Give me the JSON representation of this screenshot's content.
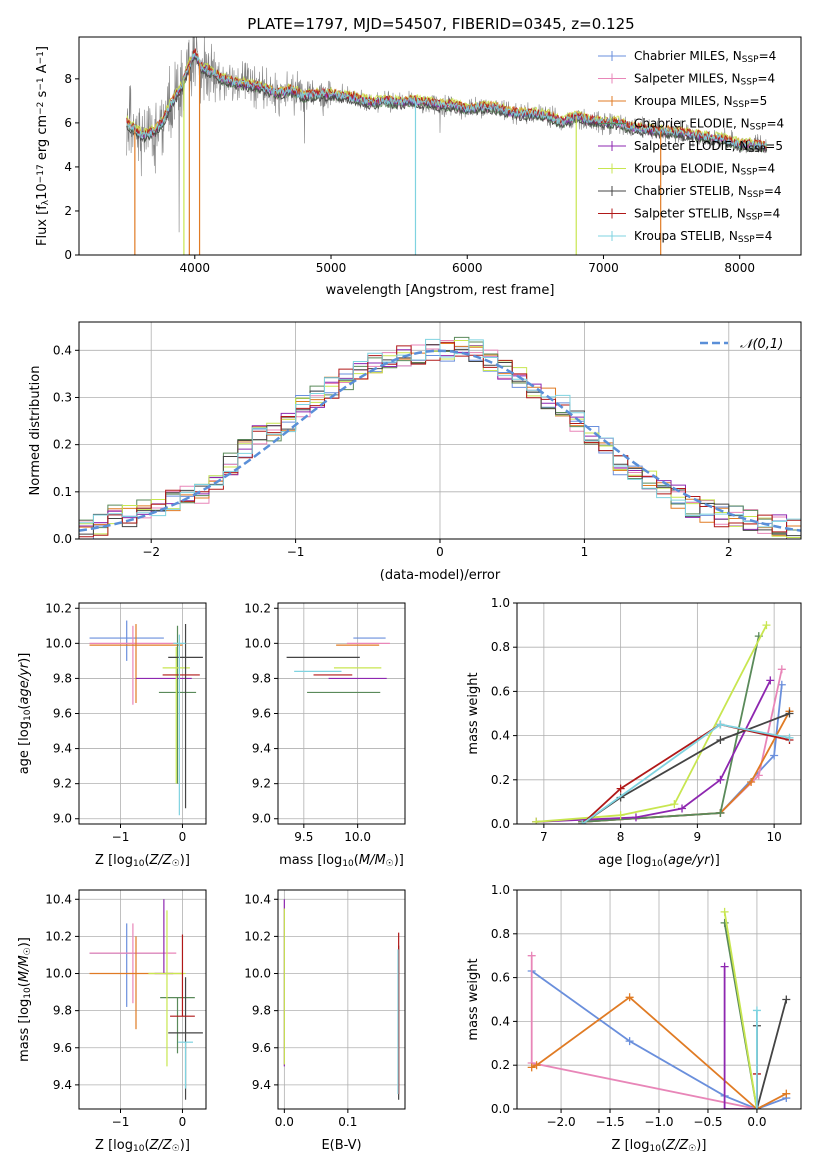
{
  "title": "PLATE=1797, MJD=54507, FIBERID=0345, z=0.125",
  "colors": {
    "Chabrier MILES": "#6a8fdc",
    "Salpeter MILES": "#e886b8",
    "Kroupa MILES": "#e07b24",
    "Chabrier ELODIE": "#5a8a5a",
    "Salpeter ELODIE": "#8e27b0",
    "Kroupa ELODIE": "#c8e650",
    "Chabrier STELIB": "#444444",
    "Salpeter STELIB": "#b01818",
    "Kroupa STELIB": "#7fd3e0",
    "data": "#808080",
    "normal": "#5a8fd8"
  },
  "chart_data": [
    {
      "id": "spectrum",
      "type": "line",
      "xlabel": "wavelength [Angstrom, rest frame]",
      "ylabel": "Flux [f_λ 10^-17 erg cm^-2 s^-1 A^-1]",
      "xlim": [
        3150,
        8450
      ],
      "ylim": [
        0,
        9.9
      ],
      "xticks": [
        4000,
        5000,
        6000,
        7000,
        8000
      ],
      "yticks": [
        0,
        2,
        4,
        6,
        8
      ],
      "grid": false,
      "legend_position": "top-right",
      "continuum": {
        "x": [
          3500,
          3560,
          3620,
          3700,
          3760,
          3820,
          3900,
          3960,
          4000,
          4050,
          4100,
          4200,
          4300,
          4400,
          4500,
          4600,
          4700,
          4800,
          4900,
          5000,
          5100,
          5200,
          5300,
          5400,
          5500,
          5600,
          5700,
          5800,
          5900,
          6000,
          6100,
          6200,
          6300,
          6400,
          6500,
          6600,
          6700,
          6800,
          6900,
          7000,
          7100,
          7200,
          7300,
          7400,
          7500,
          7600,
          7700,
          7800,
          7900,
          8000,
          8100,
          8200
        ],
        "y": [
          6.0,
          5.7,
          5.4,
          5.6,
          6.0,
          6.8,
          7.6,
          8.6,
          9.2,
          8.5,
          8.4,
          8.0,
          7.8,
          7.7,
          7.6,
          7.3,
          7.5,
          7.2,
          7.3,
          7.3,
          7.2,
          7.1,
          6.9,
          7.0,
          6.9,
          7.0,
          6.9,
          6.8,
          6.8,
          6.6,
          6.7,
          6.7,
          6.5,
          6.4,
          6.4,
          6.3,
          6.0,
          6.3,
          6.1,
          6.0,
          6.0,
          5.8,
          5.7,
          5.6,
          5.6,
          5.5,
          5.4,
          5.3,
          5.2,
          5.0,
          5.0,
          4.9
        ]
      },
      "series": [
        {
          "name": "Chabrier MILES, N_SSP=4",
          "offset": 0.05
        },
        {
          "name": "Salpeter MILES, N_SSP=4",
          "offset": -0.05
        },
        {
          "name": "Kroupa MILES, N_SSP=5",
          "offset": 0.1
        },
        {
          "name": "Chabrier ELODIE, N_SSP=4",
          "offset": -0.1
        },
        {
          "name": "Salpeter ELODIE, N_SSP=5",
          "offset": 0.0
        },
        {
          "name": "Kroupa ELODIE, N_SSP=4",
          "offset": 0.15
        },
        {
          "name": "Chabrier STELIB, N_SSP=4",
          "offset": -0.15
        },
        {
          "name": "Salpeter STELIB, N_SSP=4",
          "offset": 0.08
        },
        {
          "name": "Kroupa STELIB, N_SSP=4",
          "offset": 0.02
        }
      ]
    },
    {
      "id": "residuals",
      "type": "line",
      "xlabel": "(data-model)/error",
      "ylabel": "Normed distribution",
      "xlim": [
        -2.5,
        2.5
      ],
      "ylim": [
        0,
        0.46
      ],
      "xticks": [
        -2,
        -1,
        0,
        1,
        2
      ],
      "yticks": [
        0.0,
        0.1,
        0.2,
        0.3,
        0.4
      ],
      "grid": true,
      "legend_position": "top-right",
      "normal_label": "𝒩(0,1)",
      "bin_edges": [
        -2.5,
        -2.4,
        -2.3,
        -2.2,
        -2.1,
        -2.0,
        -1.9,
        -1.8,
        -1.7,
        -1.6,
        -1.5,
        -1.4,
        -1.3,
        -1.2,
        -1.1,
        -1.0,
        -0.9,
        -0.8,
        -0.7,
        -0.6,
        -0.5,
        -0.4,
        -0.3,
        -0.2,
        -0.1,
        0.0,
        0.1,
        0.2,
        0.3,
        0.4,
        0.5,
        0.6,
        0.7,
        0.8,
        0.9,
        1.0,
        1.1,
        1.2,
        1.3,
        1.4,
        1.5,
        1.6,
        1.7,
        1.8,
        1.9,
        2.0,
        2.1,
        2.2,
        2.3,
        2.4,
        2.5
      ],
      "hist_base": [
        0.02,
        0.03,
        0.05,
        0.05,
        0.06,
        0.07,
        0.08,
        0.09,
        0.1,
        0.13,
        0.16,
        0.19,
        0.22,
        0.23,
        0.25,
        0.28,
        0.3,
        0.32,
        0.34,
        0.36,
        0.37,
        0.38,
        0.39,
        0.39,
        0.4,
        0.4,
        0.41,
        0.4,
        0.38,
        0.36,
        0.34,
        0.32,
        0.3,
        0.28,
        0.25,
        0.22,
        0.19,
        0.16,
        0.14,
        0.12,
        0.1,
        0.09,
        0.07,
        0.06,
        0.05,
        0.05,
        0.04,
        0.03,
        0.03,
        0.02
      ]
    },
    {
      "id": "age-vs-Z",
      "type": "scatter",
      "xlabel": "Z [log10(Z/Z☉)]",
      "ylabel": "age [log10(age/yr)]",
      "xlim": [
        -1.67,
        0.38
      ],
      "ylim": [
        8.97,
        10.23
      ],
      "xticks": [
        -1,
        0
      ],
      "yticks": [
        9.0,
        9.2,
        9.4,
        9.6,
        9.8,
        10.0,
        10.2
      ],
      "grid": true,
      "points": [
        {
          "series": "Chabrier MILES",
          "x": -0.9,
          "xerr": 0.6,
          "y": 10.03,
          "yerr": [
            0.13,
            0.1
          ]
        },
        {
          "series": "Salpeter MILES",
          "x": -0.8,
          "xerr": 0.7,
          "y": 10.0,
          "yerr": [
            0.35,
            0.1
          ]
        },
        {
          "series": "Kroupa MILES",
          "x": -0.75,
          "xerr": 0.75,
          "y": 9.99,
          "yerr": [
            0.33,
            0.12
          ]
        },
        {
          "series": "Chabrier ELODIE",
          "x": -0.08,
          "xerr": 0.3,
          "y": 9.72,
          "yerr": [
            0.52,
            0.38
          ]
        },
        {
          "series": "Salpeter ELODIE",
          "x": -0.3,
          "xerr": 0.45,
          "y": 9.8,
          "yerr": [
            0.0,
            0.0
          ]
        },
        {
          "series": "Kroupa ELODIE",
          "x": -0.1,
          "xerr": 0.22,
          "y": 9.86,
          "yerr": [
            0.66,
            0.12
          ]
        },
        {
          "series": "Chabrier STELIB",
          "x": 0.05,
          "xerr": 0.28,
          "y": 9.92,
          "yerr": [
            0.86,
            0.19
          ]
        },
        {
          "series": "Salpeter STELIB",
          "x": -0.02,
          "xerr": 0.3,
          "y": 9.82,
          "yerr": [
            0.0,
            0.0
          ]
        },
        {
          "series": "Kroupa STELIB",
          "x": -0.05,
          "xerr": 0.1,
          "y": 10.0,
          "yerr": [
            0.98,
            0.05
          ]
        }
      ]
    },
    {
      "id": "age-vs-mass",
      "type": "scatter",
      "xlabel": "mass [log10(M/M☉)]",
      "ylabel": "",
      "xlim": [
        9.26,
        10.44
      ],
      "ylim": [
        8.97,
        10.23
      ],
      "xticks": [
        9.5,
        10.0
      ],
      "yticks": [
        9.0,
        9.2,
        9.4,
        9.6,
        9.8,
        10.0,
        10.2
      ],
      "grid": true,
      "points": [
        {
          "series": "Chabrier MILES",
          "x": 10.11,
          "xerr": 0.15,
          "y": 10.03,
          "yerr": [
            0.0,
            0.0
          ]
        },
        {
          "series": "Salpeter MILES",
          "x": 10.1,
          "xerr": 0.2,
          "y": 10.0,
          "yerr": [
            0.0,
            0.0
          ]
        },
        {
          "series": "Kroupa MILES",
          "x": 10.0,
          "xerr": 0.2,
          "y": 9.99,
          "yerr": [
            0.0,
            0.0
          ]
        },
        {
          "series": "Chabrier ELODIE",
          "x": 9.87,
          "xerr": 0.34,
          "y": 9.72,
          "yerr": [
            0.0,
            0.0
          ]
        },
        {
          "series": "Salpeter ELODIE",
          "x": 10.0,
          "xerr": 0.27,
          "y": 9.8,
          "yerr": [
            0.0,
            0.0
          ]
        },
        {
          "series": "Kroupa ELODIE",
          "x": 10.0,
          "xerr": 0.22,
          "y": 9.86,
          "yerr": [
            0.0,
            0.0
          ]
        },
        {
          "series": "Chabrier STELIB",
          "x": 9.68,
          "xerr": 0.34,
          "y": 9.92,
          "yerr": [
            0.0,
            0.0
          ]
        },
        {
          "series": "Salpeter STELIB",
          "x": 9.77,
          "xerr": 0.18,
          "y": 9.82,
          "yerr": [
            0.0,
            0.0
          ]
        },
        {
          "series": "Kroupa STELIB",
          "x": 9.63,
          "xerr": 0.22,
          "y": 9.84,
          "yerr": [
            0.0,
            0.0
          ]
        }
      ]
    },
    {
      "id": "weight-vs-age",
      "type": "line",
      "xlabel": "age [log10(age/yr)]",
      "ylabel": "mass weight",
      "xlim": [
        6.65,
        10.35
      ],
      "ylim": [
        0,
        1.0
      ],
      "xticks": [
        7,
        8,
        9,
        10
      ],
      "yticks": [
        0.0,
        0.2,
        0.4,
        0.6,
        0.8,
        1.0
      ],
      "grid": true,
      "series": [
        {
          "name": "Chabrier MILES",
          "x": [
            7.5,
            9.3,
            10.0,
            10.1
          ],
          "y": [
            0.01,
            0.05,
            0.31,
            0.63
          ]
        },
        {
          "name": "Salpeter MILES",
          "x": [
            7.5,
            9.3,
            9.8,
            10.1
          ],
          "y": [
            0.01,
            0.05,
            0.22,
            0.7
          ]
        },
        {
          "name": "Kroupa MILES",
          "x": [
            7.5,
            9.3,
            9.7,
            10.2
          ],
          "y": [
            0.01,
            0.05,
            0.19,
            0.51
          ]
        },
        {
          "name": "Chabrier ELODIE",
          "x": [
            7.5,
            9.3,
            9.8
          ],
          "y": [
            0.01,
            0.05,
            0.85
          ]
        },
        {
          "name": "Salpeter ELODIE",
          "x": [
            6.9,
            8.2,
            8.8,
            9.3,
            9.95
          ],
          "y": [
            0.01,
            0.03,
            0.07,
            0.2,
            0.65
          ]
        },
        {
          "name": "Kroupa ELODIE",
          "x": [
            6.9,
            8.0,
            8.7,
            9.9
          ],
          "y": [
            0.01,
            0.04,
            0.09,
            0.9
          ]
        },
        {
          "name": "Chabrier STELIB",
          "x": [
            7.5,
            8.0,
            9.3,
            10.2
          ],
          "y": [
            0.0,
            0.12,
            0.38,
            0.5
          ]
        },
        {
          "name": "Salpeter STELIB",
          "x": [
            7.5,
            8.0,
            9.3,
            10.2
          ],
          "y": [
            0.0,
            0.16,
            0.45,
            0.38
          ]
        },
        {
          "name": "Kroupa STELIB",
          "x": [
            7.5,
            9.3,
            10.2
          ],
          "y": [
            0.0,
            0.45,
            0.39
          ]
        }
      ]
    },
    {
      "id": "mass-vs-Z",
      "type": "scatter",
      "xlabel": "Z [log10(Z/Z☉)]",
      "ylabel": "mass [log10(M/M☉)]",
      "xlim": [
        -1.67,
        0.38
      ],
      "ylim": [
        9.27,
        10.45
      ],
      "xticks": [
        -1,
        0
      ],
      "yticks": [
        9.4,
        9.6,
        9.8,
        10.0,
        10.2,
        10.4
      ],
      "grid": true,
      "points": [
        {
          "series": "Chabrier MILES",
          "x": -0.9,
          "xerr": 0.6,
          "y": 10.11,
          "yerr": [
            0.29,
            0.16
          ]
        },
        {
          "series": "Salpeter MILES",
          "x": -0.8,
          "xerr": 0.7,
          "y": 10.11,
          "yerr": [
            0.27,
            0.16
          ]
        },
        {
          "series": "Kroupa MILES",
          "x": -0.75,
          "xerr": 0.75,
          "y": 10.0,
          "yerr": [
            0.3,
            0.2
          ]
        },
        {
          "series": "Chabrier ELODIE",
          "x": -0.08,
          "xerr": 0.28,
          "y": 9.87,
          "yerr": [
            0.3,
            0.0
          ]
        },
        {
          "series": "Salpeter ELODIE",
          "x": -0.3,
          "xerr": 0.15,
          "y": 10.0,
          "yerr": [
            0.0,
            0.4
          ]
        },
        {
          "series": "Kroupa ELODIE",
          "x": -0.25,
          "xerr": 0.3,
          "y": 10.0,
          "yerr": [
            0.5,
            0.34
          ]
        },
        {
          "series": "Chabrier STELIB",
          "x": 0.05,
          "xerr": 0.28,
          "y": 9.68,
          "yerr": [
            0.36,
            0.3
          ]
        },
        {
          "series": "Salpeter STELIB",
          "x": 0.0,
          "xerr": 0.2,
          "y": 9.77,
          "yerr": [
            0.0,
            0.44
          ]
        },
        {
          "series": "Kroupa STELIB",
          "x": 0.05,
          "xerr": 0.12,
          "y": 9.63,
          "yerr": [
            0.25,
            0.0
          ]
        }
      ]
    },
    {
      "id": "mass-vs-EBV",
      "type": "scatter",
      "xlabel": "E(B-V)",
      "ylabel": "",
      "xlim": [
        -0.01,
        0.19
      ],
      "ylim": [
        9.27,
        10.45
      ],
      "xticks": [
        0.0,
        0.1
      ],
      "yticks": [
        9.4,
        9.6,
        9.8,
        10.0,
        10.2,
        10.4
      ],
      "grid": true,
      "points": [
        {
          "series": "Salpeter ELODIE",
          "x": 0.0,
          "y": 9.9,
          "yerr": [
            0.4,
            0.5
          ]
        },
        {
          "series": "Kroupa ELODIE",
          "x": 0.0,
          "y": 9.95,
          "yerr": [
            0.44,
            0.4
          ]
        },
        {
          "series": "Chabrier STELIB",
          "x": 0.18,
          "y": 9.75,
          "yerr": [
            0.43,
            0.4
          ]
        },
        {
          "series": "Salpeter STELIB",
          "x": 0.18,
          "y": 9.8,
          "yerr": [
            0.45,
            0.42
          ]
        },
        {
          "series": "Kroupa STELIB",
          "x": 0.179,
          "y": 9.75,
          "yerr": [
            0.4,
            0.38
          ]
        }
      ]
    },
    {
      "id": "weight-vs-Z",
      "type": "line",
      "xlabel": "Z [log10(Z/Z☉)]",
      "ylabel": "mass weight",
      "xlim": [
        -2.45,
        0.45
      ],
      "ylim": [
        0,
        1.0
      ],
      "xticks": [
        -2.0,
        -1.5,
        -1.0,
        -0.5,
        0.0
      ],
      "yticks": [
        0.0,
        0.2,
        0.4,
        0.6,
        0.8,
        1.0
      ],
      "grid": true,
      "series": [
        {
          "name": "Chabrier MILES",
          "x": [
            -2.3,
            -1.3,
            -0.33,
            0.0,
            0.3
          ],
          "y": [
            0.63,
            0.31,
            0.06,
            0.0,
            0.05
          ]
        },
        {
          "name": "Salpeter MILES",
          "x": [
            -2.3,
            -2.3,
            0.0
          ],
          "y": [
            0.7,
            0.21,
            0.0
          ]
        },
        {
          "name": "Kroupa MILES",
          "x": [
            -2.3,
            -2.25,
            -1.3,
            0.0,
            0.3
          ],
          "y": [
            0.19,
            0.2,
            0.51,
            0.0,
            0.07
          ]
        },
        {
          "name": "Chabrier ELODIE",
          "x": [
            -0.33,
            0.0
          ],
          "y": [
            0.85,
            0.0
          ]
        },
        {
          "name": "Salpeter ELODIE",
          "x": [
            -0.33,
            -0.33,
            0.0
          ],
          "y": [
            0.65,
            0.0,
            0.0
          ]
        },
        {
          "name": "Kroupa ELODIE",
          "x": [
            -0.33,
            0.0
          ],
          "y": [
            0.9,
            0.0
          ]
        },
        {
          "name": "Chabrier STELIB",
          "x": [
            0.0,
            0.0,
            0.3
          ],
          "y": [
            0.38,
            0.0,
            0.5
          ]
        },
        {
          "name": "Salpeter STELIB",
          "x": [
            0.0,
            0.0
          ],
          "y": [
            0.16,
            0.0
          ]
        },
        {
          "name": "Kroupa STELIB",
          "x": [
            0.0,
            0.0
          ],
          "y": [
            0.45,
            0.0
          ]
        }
      ]
    }
  ]
}
